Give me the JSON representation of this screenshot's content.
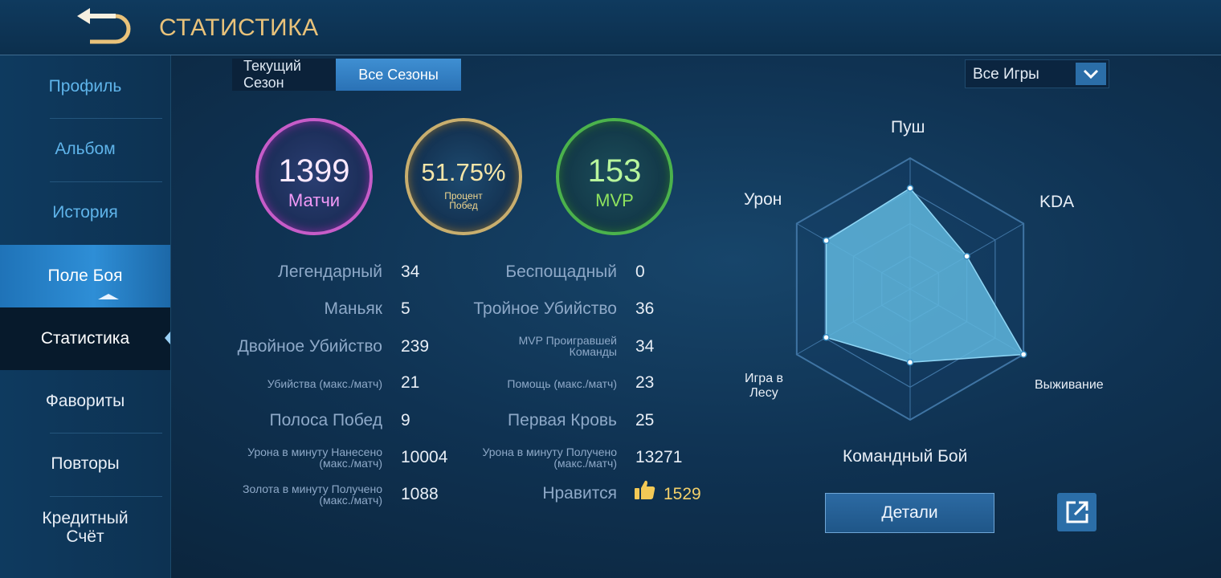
{
  "header": {
    "title": "СТАТИСТИКА"
  },
  "sidebar": {
    "items": [
      {
        "label": "Профиль"
      },
      {
        "label": "Альбом"
      },
      {
        "label": "История"
      },
      {
        "label": "Поле Боя"
      },
      {
        "label": "Статистика"
      },
      {
        "label": "Фавориты"
      },
      {
        "label": "Повторы"
      },
      {
        "label": "Кредитный Счёт"
      }
    ]
  },
  "tabs": {
    "current": "Текущий Сезон",
    "all": "Все Сезоны"
  },
  "filter": {
    "selected": "Все Игры"
  },
  "summary": {
    "matches": {
      "value": "1399",
      "label": "Матчи"
    },
    "winrate": {
      "value": "51.75%",
      "label": "Процент Побед"
    },
    "mvp": {
      "value": "153",
      "label": "MVP"
    }
  },
  "stats_left": [
    {
      "label": "Легендарный",
      "value": "34"
    },
    {
      "label": "Маньяк",
      "value": "5"
    },
    {
      "label": "Двойное Убийство",
      "value": "239"
    },
    {
      "label": "Убийства (макс./матч)",
      "value": "21"
    },
    {
      "label": "Полоса Побед",
      "value": "9"
    },
    {
      "label": "Урона в минуту Нанесено (макс./матч)",
      "value": "10004"
    },
    {
      "label": "Золота в минуту Получено (макс./матч)",
      "value": "1088"
    }
  ],
  "stats_right": [
    {
      "label": "Беспощадный",
      "value": "0"
    },
    {
      "label": "Тройное Убийство",
      "value": "36"
    },
    {
      "label": "MVP Проигравшей Команды",
      "value": "34"
    },
    {
      "label": "Помощь (макс./матч)",
      "value": "23"
    },
    {
      "label": "Первая Кровь",
      "value": "25"
    },
    {
      "label": "Урона в минуту Получено (макс./матч)",
      "value": "13271"
    }
  ],
  "likes": {
    "label": "Нравится",
    "value": "1529"
  },
  "radar": {
    "axes": [
      "Пуш",
      "KDA",
      "Выживание",
      "Командный Бой",
      "Игра в Лесу",
      "Урон"
    ],
    "values": [
      0.77,
      0.5,
      1.0,
      0.56,
      0.74,
      0.74
    ],
    "fill_color": "#5fb6dd"
  },
  "buttons": {
    "details": "Детали"
  },
  "icons": [
    "back-arrow-icon",
    "chevron-down-icon",
    "thumbs-up-icon",
    "share-icon"
  ]
}
